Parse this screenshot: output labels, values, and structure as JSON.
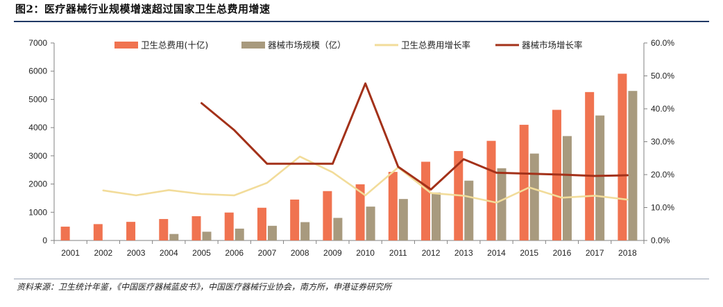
{
  "title": "图2：医疗器械行业规模增速超过国家卫生总费用增速",
  "source": "资料来源：卫生统计年鉴，《中国医疗器械蓝皮书》，中国医疗器械行业协会，南方所，申港证券研究所",
  "colors": {
    "health_bar": "#F07350",
    "device_bar": "#A89A7E",
    "health_rate": "#F2DC9A",
    "device_rate": "#A33119",
    "axis": "#808080"
  },
  "chart_data": {
    "type": "bar",
    "categories": [
      "2001",
      "2002",
      "2003",
      "2004",
      "2005",
      "2006",
      "2007",
      "2008",
      "2009",
      "2010",
      "2011",
      "2012",
      "2013",
      "2014",
      "2015",
      "2016",
      "2017",
      "2018"
    ],
    "ylim": [
      0,
      7000
    ],
    "y2lim": [
      0,
      0.6
    ],
    "yticks": [
      "0",
      "1000",
      "2000",
      "3000",
      "4000",
      "5000",
      "6000",
      "7000"
    ],
    "y2ticks": [
      "0.0%",
      "10.0%",
      "20.0%",
      "30.0%",
      "40.0%",
      "50.0%",
      "60.0%"
    ],
    "legend_position": "top",
    "series": [
      {
        "name": "卫生总费用(十亿)",
        "kind": "bar",
        "axis": "left",
        "values": [
          490,
          580,
          660,
          760,
          860,
          990,
          1160,
          1450,
          1750,
          1990,
          2430,
          2790,
          3170,
          3530,
          4100,
          4630,
          5260,
          5910
        ]
      },
      {
        "name": "器械市场规模（亿）",
        "kind": "bar",
        "axis": "left",
        "values": [
          null,
          null,
          null,
          230,
          310,
          420,
          520,
          650,
          800,
          1200,
          1470,
          1700,
          2120,
          2560,
          3080,
          3700,
          4430,
          5300
        ]
      },
      {
        "name": "卫生总费用增长率",
        "kind": "line",
        "axis": "right",
        "values": [
          null,
          0.152,
          0.137,
          0.153,
          0.141,
          0.137,
          0.175,
          0.255,
          0.207,
          0.137,
          0.222,
          0.144,
          0.136,
          0.115,
          0.161,
          0.13,
          0.136,
          0.124
        ]
      },
      {
        "name": "器械市场增长率",
        "kind": "line",
        "axis": "right",
        "values": [
          null,
          null,
          null,
          null,
          0.417,
          0.335,
          0.233,
          0.233,
          0.233,
          0.477,
          0.224,
          0.155,
          0.247,
          0.206,
          0.203,
          0.2,
          0.196,
          0.198
        ]
      }
    ]
  }
}
